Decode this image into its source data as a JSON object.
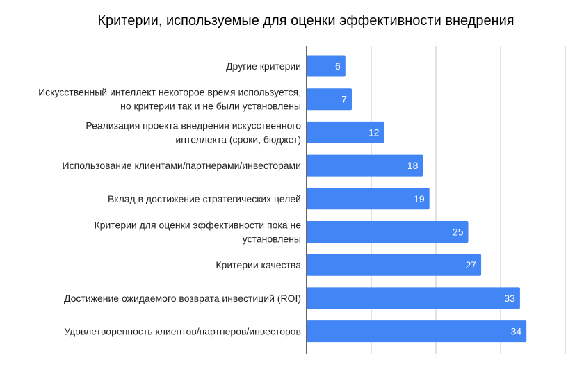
{
  "chart_data": {
    "type": "bar",
    "orientation": "horizontal",
    "title": "Критерии, используемые для оценки эффективности внедрения",
    "categories": [
      [
        "Другие критерии"
      ],
      [
        "Искусственный интеллект некоторое время используется,",
        "но критерии так и не были установлены"
      ],
      [
        "Реализация проекта внедрения искусственного",
        "интеллекта (сроки, бюджет)"
      ],
      [
        "Использование клиентами/партнерами/инвесторами"
      ],
      [
        "Вклад в достижение стратегических целей"
      ],
      [
        "Критерии для оценки эффективности пока не",
        "установлены"
      ],
      [
        "Критерии качества"
      ],
      [
        "Достижение ожидаемого возврата инвестиций (ROI)"
      ],
      [
        "Удовлетворенность клиентов/партнеров/инвесторов"
      ]
    ],
    "values": [
      6,
      7,
      12,
      18,
      19,
      25,
      27,
      33,
      34
    ],
    "xlim": [
      0,
      40
    ],
    "grid": true,
    "tick_labels_shown": false,
    "data_labels": true,
    "bar_color": "#4285f4",
    "label_color": "#ffffff"
  }
}
